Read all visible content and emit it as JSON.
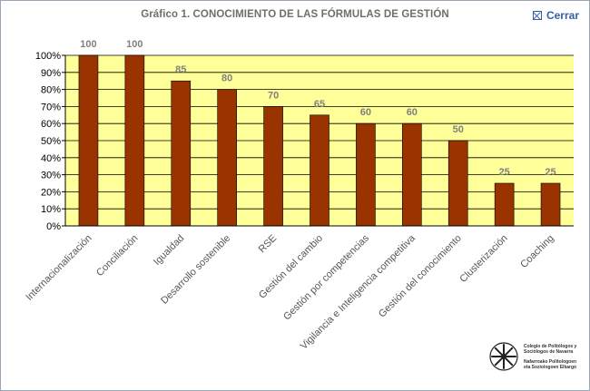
{
  "window": {
    "title": "Gráfico 1. CONOCIMIENTO DE LAS FÓRMULAS DE GESTIÓN",
    "close_label": "Cerrar",
    "close_icon": "close-x-box-icon"
  },
  "logo": {
    "line1": "Colegio de Politólogos y",
    "line2": "Sociólogos de Navarra",
    "line3": "Nafarroako Politologoen",
    "line4": "eta Soziologoen Elkargo"
  },
  "colors": {
    "plot_background": "#ffff99",
    "bar_fill": "#993300",
    "grid": "#000000",
    "value_label": "#808080"
  },
  "chart_data": {
    "type": "bar",
    "title": "Gráfico 1. CONOCIMIENTO DE LAS FÓRMULAS DE GESTIÓN",
    "categories": [
      "Internacionalización",
      "Conciliación",
      "Igualdad",
      "Desarrollo sostenible",
      "RSE",
      "Gestión del cambio",
      "Gestión por competencias",
      "Vigilancia e Inteligencia competitiva",
      "Gestión del conocimiento",
      "Clusterización",
      "Coaching"
    ],
    "values": [
      100,
      100,
      85,
      80,
      70,
      65,
      60,
      60,
      50,
      25,
      25
    ],
    "data_labels": [
      "100",
      "100",
      "85",
      "80",
      "70",
      "65",
      "60",
      "60",
      "50",
      "25",
      "25"
    ],
    "y_ticks": [
      "0%",
      "10%",
      "20%",
      "30%",
      "40%",
      "50%",
      "60%",
      "70%",
      "80%",
      "90%",
      "100%"
    ],
    "ylim": [
      0,
      100
    ],
    "y_unit": "percent",
    "grid": true,
    "legend": "none"
  }
}
